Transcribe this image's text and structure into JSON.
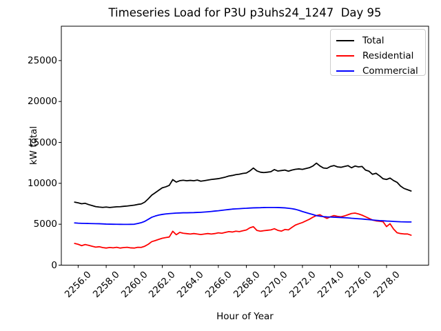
{
  "figure": {
    "background": "#ffffff",
    "text_color": "#000000",
    "frame_color": "#000000",
    "legend_border_color": "#cccccc"
  },
  "chart_data": {
    "type": "line",
    "title": "Timeseries Load for P3U p3uhs24_1247  Day 95",
    "xlabel": "Hour of Year",
    "ylabel": "kW total",
    "xlim": [
      2254.8,
      2281.0
    ],
    "ylim": [
      0,
      29200
    ],
    "grid": false,
    "legend_position": "upper right",
    "x_ticks": [
      "2256.0",
      "2258.0",
      "2260.0",
      "2262.0",
      "2264.0",
      "2266.0",
      "2268.0",
      "2270.0",
      "2272.0",
      "2274.0",
      "2276.0",
      "2278.0"
    ],
    "x_tick_values": [
      2256,
      2258,
      2260,
      2262,
      2264,
      2266,
      2268,
      2270,
      2272,
      2274,
      2276,
      2278
    ],
    "y_ticks": [
      "0",
      "5000",
      "10000",
      "15000",
      "20000",
      "25000"
    ],
    "y_tick_values": [
      0,
      5000,
      10000,
      15000,
      20000,
      25000
    ],
    "x": [
      2255.75,
      2256,
      2256.25,
      2256.5,
      2256.75,
      2257,
      2257.25,
      2257.5,
      2257.75,
      2258,
      2258.25,
      2258.5,
      2258.75,
      2259,
      2259.25,
      2259.5,
      2259.75,
      2260,
      2260.25,
      2260.5,
      2260.75,
      2261,
      2261.25,
      2261.5,
      2261.75,
      2262,
      2262.25,
      2262.5,
      2262.75,
      2263,
      2263.25,
      2263.5,
      2263.75,
      2264,
      2264.25,
      2264.5,
      2264.75,
      2265,
      2265.25,
      2265.5,
      2265.75,
      2266,
      2266.25,
      2266.5,
      2266.75,
      2267,
      2267.25,
      2267.5,
      2267.75,
      2268,
      2268.25,
      2268.5,
      2268.75,
      2269,
      2269.25,
      2269.5,
      2269.75,
      2270,
      2270.25,
      2270.5,
      2270.75,
      2271,
      2271.25,
      2271.5,
      2271.75,
      2272,
      2272.25,
      2272.5,
      2272.75,
      2273,
      2273.25,
      2273.5,
      2273.75,
      2274,
      2274.25,
      2274.5,
      2274.75,
      2275,
      2275.25,
      2275.5,
      2275.75,
      2276,
      2276.25,
      2276.5,
      2276.75,
      2277,
      2277.25,
      2277.5,
      2277.75,
      2278,
      2278.25,
      2278.5,
      2278.75,
      2279,
      2279.25,
      2279.5,
      2279.75
    ],
    "series": [
      {
        "name": "Total",
        "color": "#000000",
        "values": [
          7700,
          7620,
          7500,
          7560,
          7400,
          7280,
          7150,
          7100,
          7060,
          7100,
          7050,
          7090,
          7130,
          7140,
          7190,
          7230,
          7280,
          7330,
          7420,
          7480,
          7700,
          8100,
          8550,
          8850,
          9150,
          9450,
          9570,
          9750,
          10450,
          10150,
          10320,
          10380,
          10310,
          10360,
          10310,
          10400,
          10260,
          10320,
          10400,
          10470,
          10520,
          10570,
          10660,
          10760,
          10890,
          10960,
          11060,
          11110,
          11210,
          11260,
          11520,
          11870,
          11520,
          11360,
          11310,
          11360,
          11420,
          11680,
          11500,
          11560,
          11620,
          11480,
          11620,
          11710,
          11760,
          11700,
          11810,
          11910,
          12120,
          12470,
          12120,
          11870,
          11830,
          12060,
          12170,
          12010,
          11960,
          12060,
          12160,
          11900,
          12110,
          12010,
          12060,
          11620,
          11480,
          11100,
          11230,
          10920,
          10560,
          10470,
          10640,
          10340,
          10120,
          9660,
          9370,
          9220,
          9060
        ]
      },
      {
        "name": "Residential",
        "color": "#ff0000",
        "values": [
          2650,
          2550,
          2380,
          2520,
          2420,
          2310,
          2200,
          2250,
          2150,
          2090,
          2160,
          2120,
          2180,
          2090,
          2150,
          2180,
          2110,
          2090,
          2180,
          2170,
          2310,
          2550,
          2870,
          3000,
          3150,
          3290,
          3370,
          3440,
          4140,
          3720,
          4000,
          3900,
          3850,
          3800,
          3860,
          3800,
          3740,
          3800,
          3860,
          3800,
          3860,
          3950,
          3900,
          4000,
          4100,
          4050,
          4150,
          4100,
          4200,
          4300,
          4560,
          4700,
          4250,
          4150,
          4210,
          4260,
          4310,
          4450,
          4250,
          4160,
          4360,
          4310,
          4610,
          4900,
          5060,
          5210,
          5410,
          5610,
          5860,
          6060,
          6160,
          5910,
          5710,
          5910,
          6060,
          5960,
          5910,
          6010,
          6160,
          6310,
          6360,
          6260,
          6110,
          5910,
          5710,
          5510,
          5410,
          5360,
          5310,
          4710,
          5060,
          4410,
          3960,
          3860,
          3810,
          3810,
          3660
        ]
      },
      {
        "name": "Commercial",
        "color": "#0000ff",
        "values": [
          5160,
          5130,
          5110,
          5100,
          5090,
          5080,
          5070,
          5060,
          5040,
          5020,
          5010,
          5000,
          4995,
          4990,
          4985,
          4985,
          4990,
          5000,
          5090,
          5190,
          5350,
          5600,
          5850,
          6000,
          6120,
          6200,
          6260,
          6300,
          6330,
          6360,
          6380,
          6400,
          6400,
          6410,
          6420,
          6440,
          6460,
          6490,
          6520,
          6560,
          6610,
          6650,
          6700,
          6750,
          6800,
          6850,
          6880,
          6900,
          6930,
          6950,
          6980,
          7000,
          7010,
          7020,
          7040,
          7050,
          7050,
          7050,
          7040,
          7020,
          7000,
          6950,
          6900,
          6820,
          6700,
          6550,
          6430,
          6300,
          6180,
          6050,
          5980,
          5930,
          5900,
          5880,
          5860,
          5840,
          5820,
          5800,
          5770,
          5730,
          5700,
          5670,
          5640,
          5600,
          5560,
          5520,
          5480,
          5440,
          5420,
          5390,
          5370,
          5340,
          5320,
          5300,
          5290,
          5280,
          5280
        ]
      }
    ],
    "legend": {
      "entries": [
        {
          "label": "Total"
        },
        {
          "label": "Residential"
        },
        {
          "label": "Commercial"
        }
      ]
    }
  }
}
